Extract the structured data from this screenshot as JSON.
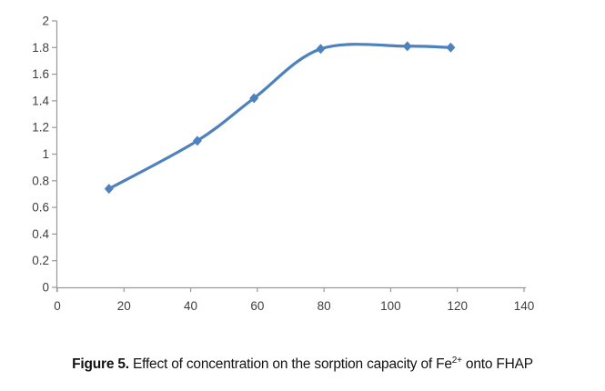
{
  "caption": {
    "label": "Figure 5.",
    "body": " Effect of concentration on the sorption capacity of Fe",
    "superscript": "2+",
    "tail": " onto FHAP"
  },
  "chart_data": {
    "type": "line",
    "title": "",
    "xlabel": "",
    "ylabel": "",
    "xlim": [
      0,
      140
    ],
    "ylim": [
      0,
      2
    ],
    "x_ticks": [
      0,
      20,
      40,
      60,
      80,
      100,
      120,
      140
    ],
    "y_ticks": [
      0,
      0.2,
      0.4,
      0.6,
      0.8,
      1,
      1.2,
      1.4,
      1.6,
      1.8,
      2
    ],
    "grid": false,
    "legend_position": "none",
    "smooth_line": true,
    "marker": "diamond",
    "line_color": "#4F81BD",
    "axis_color": "#999999",
    "tick_label_color": "#3F3F3F",
    "series": [
      {
        "x": [
          15.5,
          42,
          59,
          79,
          105,
          118
        ],
        "y": [
          0.74,
          1.1,
          1.42,
          1.79,
          1.81,
          1.8
        ]
      }
    ]
  }
}
